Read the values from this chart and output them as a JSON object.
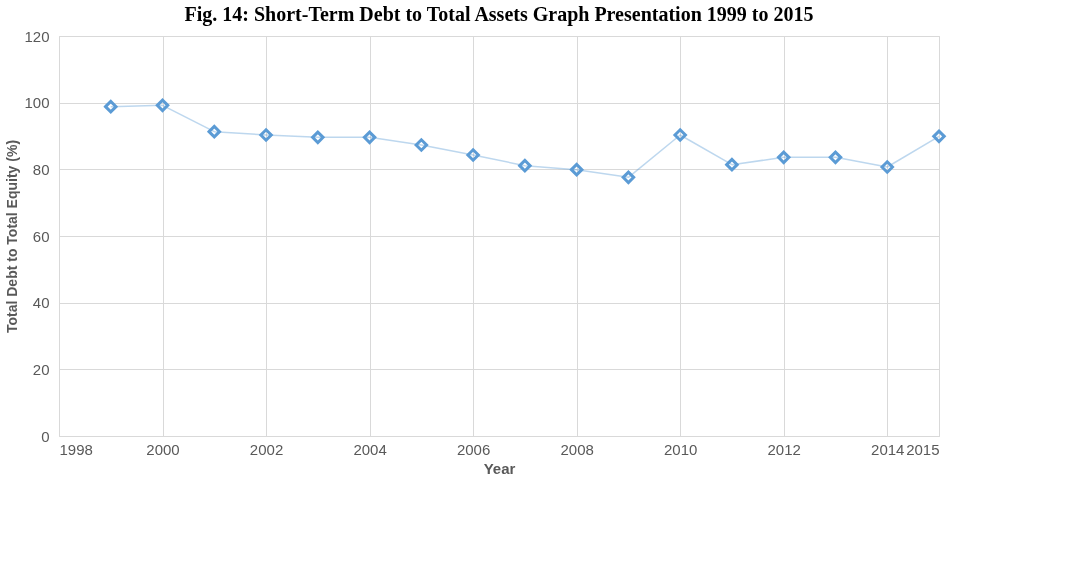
{
  "chart_data": {
    "type": "line",
    "title": "Fig. 14: Short-Term Debt to Total Assets Graph Presentation 1999 to 2015",
    "xlabel": "Year",
    "ylabel": "Total Debt to Total Equity (%)",
    "x": [
      1999,
      2000,
      2001,
      2002,
      2003,
      2004,
      2005,
      2006,
      2007,
      2008,
      2009,
      2010,
      2011,
      2012,
      2013,
      2014,
      2015
    ],
    "series": [
      {
        "color": "#5b9bd5",
        "values": [
          98.8,
          99.2,
          91.3,
          90.3,
          89.6,
          89.6,
          87.3,
          84.3,
          81.1,
          79.9,
          77.6,
          90.3,
          81.4,
          83.6,
          83.6,
          80.7,
          89.9
        ]
      }
    ],
    "xlim": [
      1998,
      2015
    ],
    "xticks": [
      1998,
      2000,
      2002,
      2004,
      2006,
      2008,
      2010,
      2012,
      2014,
      2015
    ],
    "ylim": [
      0,
      120
    ],
    "yticks": [
      0,
      20,
      40,
      60,
      80,
      100,
      120
    ],
    "grid": true,
    "marker": "diamond",
    "line_style": "solid"
  }
}
